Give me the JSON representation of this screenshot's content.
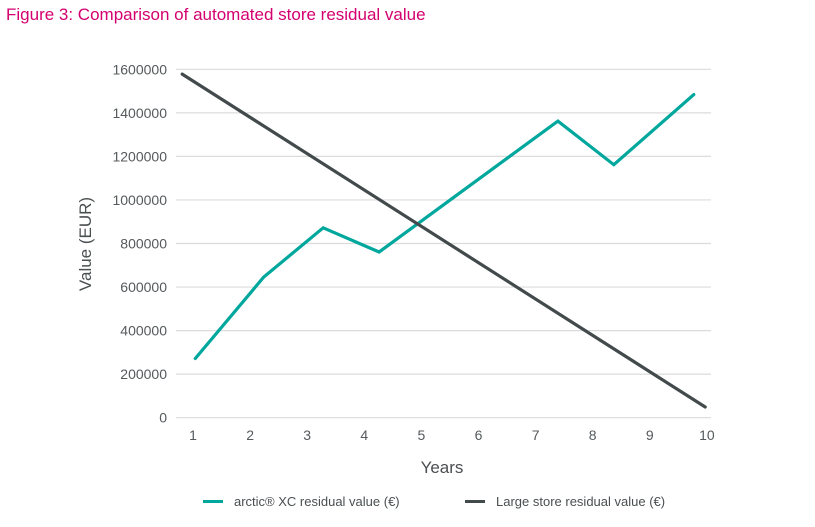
{
  "chart_data": {
    "type": "line",
    "title": "Figure 3: Comparison of automated store residual value",
    "xlabel": "Years",
    "ylabel": "Value (EUR)",
    "xlim": [
      1,
      10
    ],
    "ylim": [
      0,
      1600000
    ],
    "x_ticks": [
      "1",
      "2",
      "3",
      "4",
      "5",
      "6",
      "7",
      "8",
      "9",
      "10"
    ],
    "y_ticks": [
      "0",
      "200000",
      "400000",
      "600000",
      "800000",
      "1000000",
      "1200000",
      "1400000",
      "1600000"
    ],
    "grid": true,
    "legend_position": "bottom",
    "series": [
      {
        "name": "arctic® XC residual value (€)",
        "color": "#00a79d",
        "points": [
          [
            1.04,
            272000
          ],
          [
            2.24,
            646000
          ],
          [
            3.28,
            872000
          ],
          [
            4.26,
            761000
          ],
          [
            7.39,
            1362000
          ],
          [
            8.37,
            1162000
          ],
          [
            9.77,
            1484000
          ]
        ]
      },
      {
        "name": "Large store residual value (€)",
        "color": "#424a4c",
        "points": [
          [
            0.81,
            1578000
          ],
          [
            9.97,
            49000
          ]
        ]
      }
    ]
  }
}
